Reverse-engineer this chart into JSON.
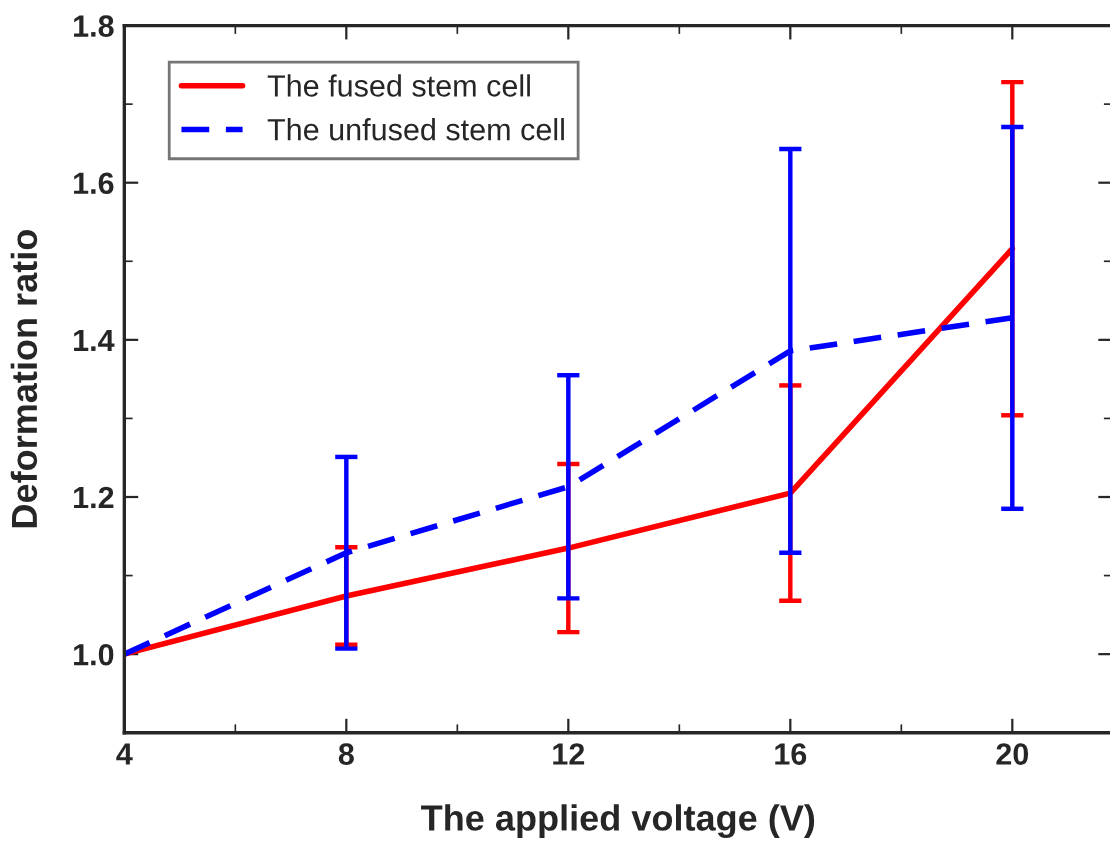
{
  "chart_data": {
    "type": "line",
    "xlabel": "The applied voltage (V)",
    "ylabel": "Deformation ratio",
    "x": [
      4,
      8,
      12,
      16,
      20
    ],
    "series": [
      {
        "name": "The fused stem cell",
        "color": "#ff0000",
        "line_style": "solid",
        "values": [
          1.0,
          1.074,
          1.135,
          1.205,
          1.516
        ],
        "errors": [
          null,
          0.062,
          0.107,
          0.137,
          0.212
        ]
      },
      {
        "name": "The unfused stem cell",
        "color": "#0000ff",
        "line_style": "dashed",
        "values": [
          1.0,
          1.129,
          1.213,
          1.386,
          1.428
        ],
        "errors": [
          null,
          0.122,
          0.142,
          0.257,
          0.243
        ]
      }
    ],
    "xlim": [
      4,
      21.8
    ],
    "xticks": [
      4,
      8,
      12,
      16,
      20
    ],
    "ylim": [
      0.9,
      1.8
    ],
    "yticks": [
      {
        "value": 1.0,
        "label": "1.0"
      },
      1.2,
      1.4,
      1.6,
      1.8
    ],
    "marker": "none",
    "grid": false,
    "legend": "top left"
  }
}
